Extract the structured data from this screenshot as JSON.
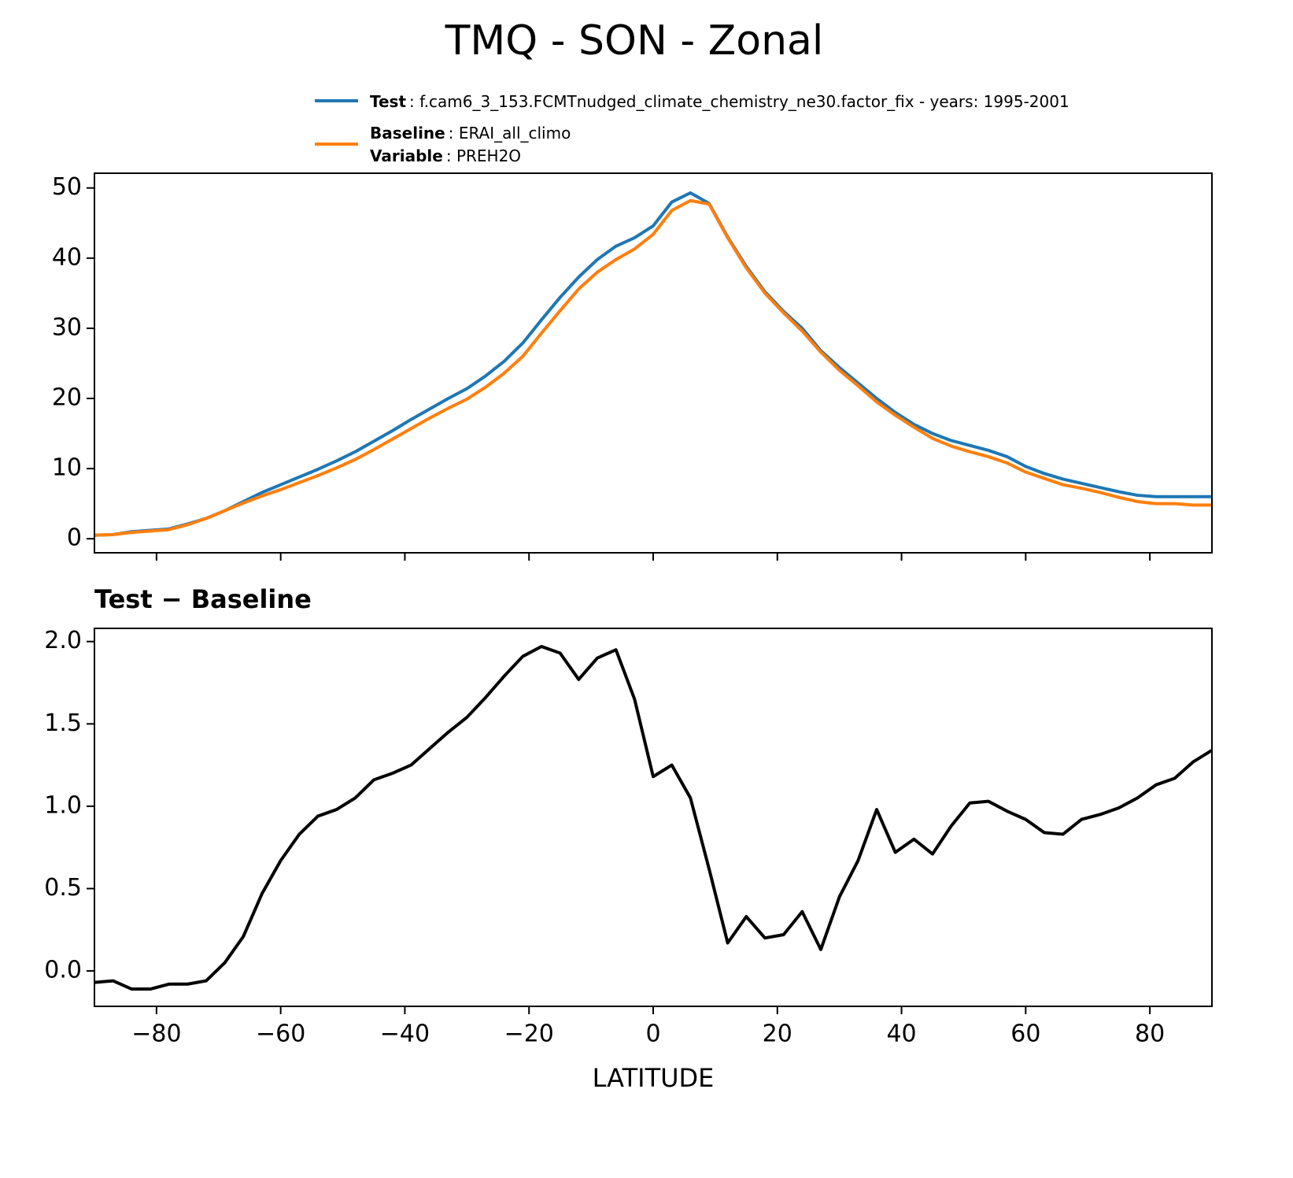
{
  "title": "TMQ - SON - Zonal",
  "chart_data": [
    {
      "type": "line",
      "x": [
        -90,
        -87,
        -84,
        -81,
        -78,
        -75,
        -72,
        -69,
        -66,
        -63,
        -60,
        -57,
        -54,
        -51,
        -48,
        -45,
        -42,
        -39,
        -36,
        -33,
        -30,
        -27,
        -24,
        -21,
        -18,
        -15,
        -12,
        -9,
        -6,
        -3,
        0,
        3,
        6,
        9,
        12,
        15,
        18,
        21,
        24,
        27,
        30,
        33,
        36,
        39,
        42,
        45,
        48,
        51,
        54,
        57,
        60,
        63,
        66,
        69,
        72,
        75,
        78,
        81,
        84,
        87,
        90
      ],
      "series": [
        {
          "name": "Test",
          "description": ": f.cam6_3_153.FCMTnudged_climate_chemistry_ne30.factor_fix - years: 1995-2001",
          "color": "#1f77b4",
          "values": [
            0.5,
            0.6,
            1.0,
            1.2,
            1.4,
            2.1,
            2.9,
            4.0,
            5.3,
            6.6,
            7.7,
            8.8,
            9.9,
            11.1,
            12.4,
            13.9,
            15.4,
            17.0,
            18.5,
            20.0,
            21.4,
            23.2,
            25.3,
            27.9,
            31.2,
            34.4,
            37.3,
            39.8,
            41.7,
            42.9,
            44.6,
            48.0,
            49.3,
            47.8,
            43.0,
            38.8,
            35.2,
            32.4,
            30.0,
            26.8,
            24.4,
            22.2,
            20.0,
            18.0,
            16.3,
            15.0,
            14.0,
            13.3,
            12.6,
            11.7,
            10.3,
            9.3,
            8.5,
            7.9,
            7.3,
            6.7,
            6.2,
            6.0,
            6.0,
            6.0,
            6.0
          ]
        },
        {
          "name": "Baseline",
          "description": ": ERAI_all_climo",
          "color": "#ff7f0e",
          "values": [
            0.5,
            0.6,
            0.9,
            1.1,
            1.3,
            2.0,
            2.9,
            4.0,
            5.1,
            6.1,
            7.0,
            8.0,
            9.0,
            10.1,
            11.3,
            12.7,
            14.2,
            15.7,
            17.2,
            18.6,
            19.9,
            21.6,
            23.6,
            26.0,
            29.3,
            32.5,
            35.6,
            38.0,
            39.8,
            41.3,
            43.4,
            46.8,
            48.2,
            47.7,
            42.9,
            38.6,
            35.0,
            32.2,
            29.6,
            26.6,
            24.0,
            21.8,
            19.5,
            17.6,
            15.9,
            14.3,
            13.2,
            12.4,
            11.7,
            10.8,
            9.5,
            8.6,
            7.7,
            7.2,
            6.6,
            5.9,
            5.3,
            5.0,
            5.0,
            4.8,
            4.8
          ]
        }
      ],
      "legend_extra": {
        "name": "Variable",
        "description": ": PREH2O"
      },
      "xlim": [
        -90,
        90
      ],
      "xticks": [
        -80,
        -60,
        -40,
        -20,
        0,
        20,
        40,
        60,
        80
      ],
      "xtick_labels": false,
      "ylim": [
        -2.0,
        52.1
      ],
      "yticks": [
        0,
        10,
        20,
        30,
        40,
        50
      ]
    },
    {
      "type": "line",
      "title": "Test − Baseline",
      "xlabel": "LATITUDE",
      "x": [
        -90,
        -87,
        -84,
        -81,
        -78,
        -75,
        -72,
        -69,
        -66,
        -63,
        -60,
        -57,
        -54,
        -51,
        -48,
        -45,
        -42,
        -39,
        -36,
        -33,
        -30,
        -27,
        -24,
        -21,
        -18,
        -15,
        -12,
        -9,
        -6,
        -3,
        0,
        3,
        6,
        9,
        12,
        15,
        18,
        21,
        24,
        27,
        30,
        33,
        36,
        39,
        42,
        45,
        48,
        51,
        54,
        57,
        60,
        63,
        66,
        69,
        72,
        75,
        78,
        81,
        84,
        87,
        90
      ],
      "series": [
        {
          "color": "#000000",
          "values": [
            -0.07,
            -0.06,
            -0.11,
            -0.11,
            -0.08,
            -0.08,
            -0.06,
            0.05,
            0.21,
            0.47,
            0.67,
            0.83,
            0.94,
            0.98,
            1.05,
            1.16,
            1.2,
            1.25,
            1.35,
            1.45,
            1.54,
            1.66,
            1.79,
            1.91,
            1.97,
            1.93,
            1.77,
            1.9,
            1.95,
            1.65,
            1.18,
            1.25,
            1.05,
            0.62,
            0.17,
            0.33,
            0.2,
            0.22,
            0.36,
            0.13,
            0.45,
            0.67,
            0.98,
            0.72,
            0.8,
            0.71,
            0.88,
            1.02,
            1.03,
            0.97,
            0.92,
            0.84,
            0.83,
            0.92,
            0.95,
            0.99,
            1.05,
            1.13,
            1.17,
            1.27,
            1.34
          ]
        }
      ],
      "xlim": [
        -90,
        90
      ],
      "xticks": [
        {
          "value": -80,
          "label": "−80"
        },
        {
          "value": -60,
          "label": "−60"
        },
        {
          "value": -40,
          "label": "−40"
        },
        {
          "value": -20,
          "label": "−20"
        },
        0,
        20,
        40,
        60,
        80
      ],
      "xtick_labels": true,
      "ylim": [
        -0.215,
        2.08
      ],
      "yticks": [
        {
          "value": 0,
          "label": "0.0"
        },
        0.5,
        {
          "value": 1,
          "label": "1.0"
        },
        1.5,
        {
          "value": 2,
          "label": "2.0"
        }
      ]
    }
  ]
}
